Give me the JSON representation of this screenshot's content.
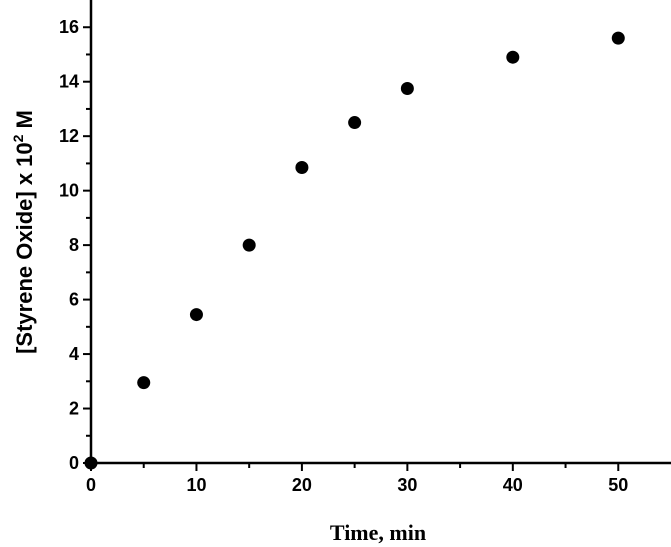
{
  "chart_data": {
    "type": "scatter",
    "title": "",
    "xlabel": "Time, min",
    "ylabel_main": "[Styrene Oxide] x 10",
    "ylabel_exponent": "2",
    "ylabel_unit": " M",
    "xlim": [
      0,
      55
    ],
    "ylim": [
      0,
      17
    ],
    "x_ticks": [
      0,
      10,
      20,
      30,
      40,
      50
    ],
    "y_ticks": [
      0,
      2,
      4,
      6,
      8,
      10,
      12,
      14,
      16
    ],
    "grid": false,
    "marker_color": "#000000",
    "series": [
      {
        "x": [
          0,
          5,
          10,
          15,
          20,
          25,
          30,
          40,
          50
        ],
        "y": [
          0,
          2.95,
          5.45,
          8.0,
          10.85,
          12.5,
          13.75,
          14.9,
          15.6
        ]
      }
    ]
  }
}
